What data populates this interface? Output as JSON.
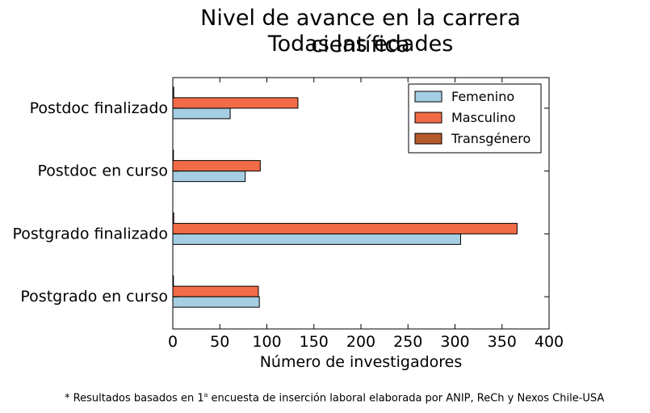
{
  "chart_data": {
    "type": "bar",
    "orientation": "horizontal",
    "title_line1": "Nivel de avance en la carrera científica",
    "title_line2": "Todas las edades",
    "xlabel": "Número de investigadores",
    "ylabel": "",
    "xlim": [
      0,
      400
    ],
    "xticks": [
      0,
      50,
      100,
      150,
      200,
      250,
      300,
      350,
      400
    ],
    "categories": [
      "Postgrado en curso",
      "Postgrado finalizado",
      "Postdoc en curso",
      "Postdoc finalizado"
    ],
    "series": [
      {
        "name": "Femenino",
        "color": "#a6cee3",
        "values": [
          92,
          306,
          77,
          61
        ]
      },
      {
        "name": "Masculino",
        "color": "#f26b47",
        "values": [
          91,
          366,
          93,
          133
        ]
      },
      {
        "name": "Transgénero",
        "color": "#b35a2d",
        "values": [
          0,
          1,
          0,
          1
        ]
      }
    ],
    "legend_position": "top-right",
    "grid": false
  },
  "footnote": {
    "prefix": "* Resultados basados en ",
    "ordinal_number": "1",
    "ordinal_suffix": "a",
    "suffix": " encuesta de inserción laboral elaborada por ANIP, ReCh y Nexos Chile-USA"
  }
}
